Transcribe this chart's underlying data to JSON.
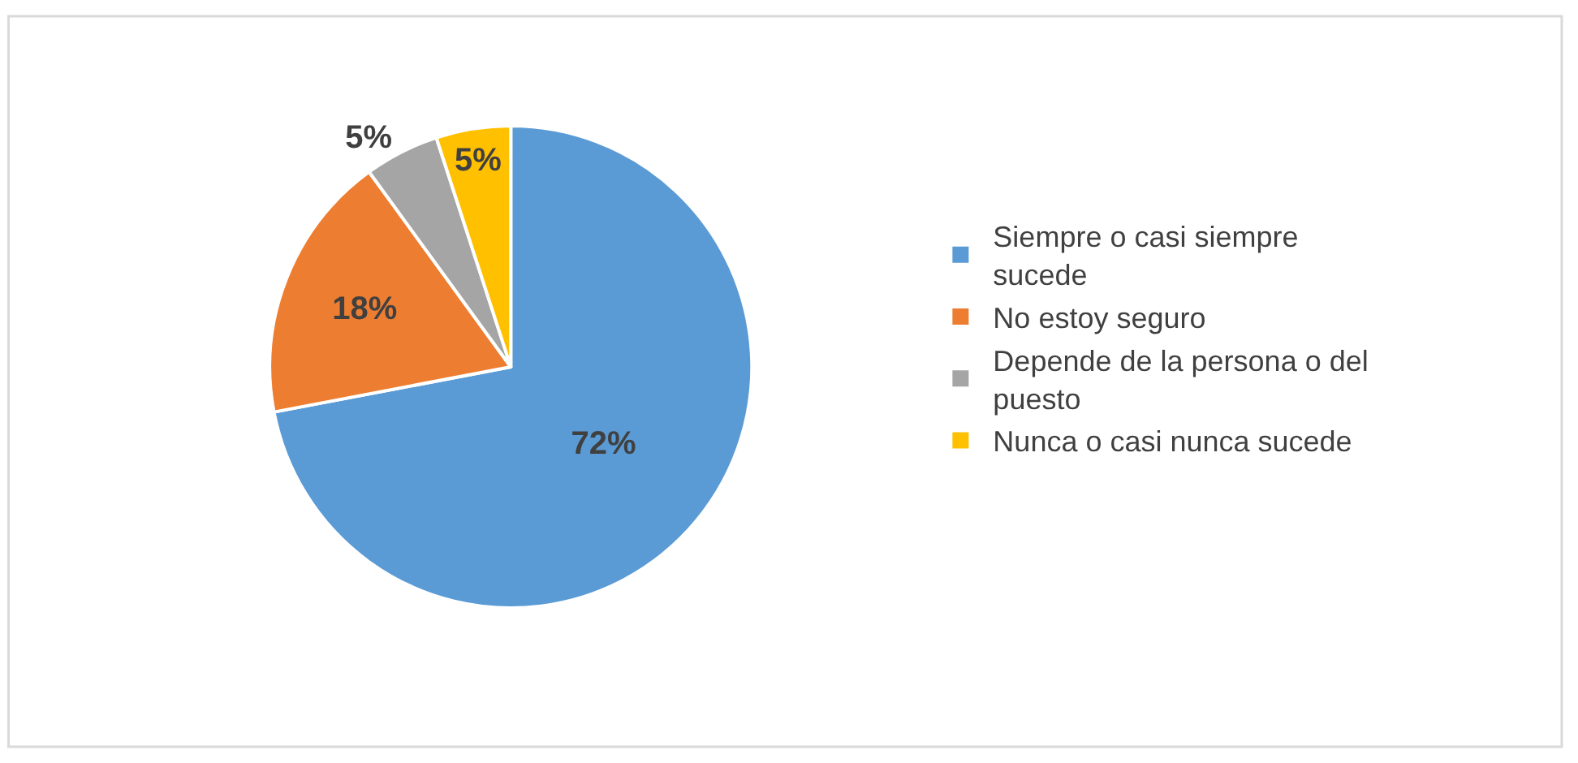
{
  "chart_data": {
    "type": "pie",
    "categories": [
      "Siempre o casi siempre sucede",
      "No estoy seguro",
      "Depende de la persona o del puesto",
      "Nunca o casi nunca sucede"
    ],
    "values": [
      72,
      18,
      5,
      5
    ],
    "colors": [
      "#5b9bd5",
      "#ed7d31",
      "#a5a5a5",
      "#ffc000"
    ],
    "value_labels": [
      "72%",
      "18%",
      "5%",
      "5%"
    ],
    "legend": "right"
  }
}
